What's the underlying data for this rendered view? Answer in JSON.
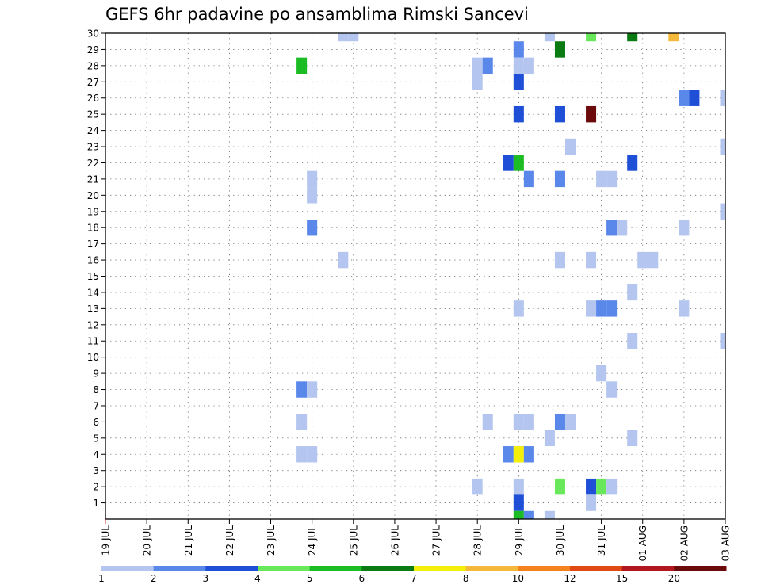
{
  "chart_data": {
    "type": "heatmap",
    "title": "GEFS 6hr padavine po ansamblima Rimski Sancevi",
    "xlabel": "",
    "ylabel": "",
    "x_ticks": [
      "19 JUL",
      "20 JUL",
      "21 JUL",
      "22 JUL",
      "23 JUL",
      "24 JUL",
      "25 JUL",
      "26 JUL",
      "27 JUL",
      "28 JUL",
      "29 JUL",
      "30 JUL",
      "31 JUL",
      "01 AUG",
      "02 AUG",
      "03 AUG"
    ],
    "y_ticks": [
      "1",
      "2",
      "3",
      "4",
      "5",
      "6",
      "7",
      "8",
      "9",
      "10",
      "11",
      "12",
      "13",
      "14",
      "15",
      "16",
      "17",
      "18",
      "19",
      "20",
      "21",
      "22",
      "23",
      "24",
      "25",
      "26",
      "27",
      "28",
      "29",
      "30"
    ],
    "x_range_days": [
      0,
      15
    ],
    "y_range": [
      0,
      30
    ],
    "x_step_hours": 6,
    "grid": true,
    "colorbar": {
      "labels": [
        "1",
        "2",
        "3",
        "4",
        "5",
        "6",
        "7",
        "8",
        "10",
        "12",
        "15",
        "20"
      ],
      "colors": [
        "#b4c6ef",
        "#5a87ea",
        "#1f4fd6",
        "#6ae85c",
        "#1cbd24",
        "#0a7a12",
        "#f3ee0a",
        "#f4b83a",
        "#f4821e",
        "#e24a14",
        "#b2161e",
        "#6b0a0a"
      ]
    },
    "cells": [
      {
        "x": 5.75,
        "y": 30,
        "level": 1
      },
      {
        "x": 6.0,
        "y": 30,
        "level": 1
      },
      {
        "x": 10.75,
        "y": 30,
        "level": 1
      },
      {
        "x": 11.75,
        "y": 30,
        "level": 4
      },
      {
        "x": 12.75,
        "y": 30,
        "level": 6
      },
      {
        "x": 13.75,
        "y": 30,
        "level": 8
      },
      {
        "x": 10.0,
        "y": 29,
        "level": 2
      },
      {
        "x": 11.0,
        "y": 29,
        "level": 6
      },
      {
        "x": 4.75,
        "y": 28,
        "level": 5
      },
      {
        "x": 9.0,
        "y": 28,
        "level": 1
      },
      {
        "x": 9.25,
        "y": 28,
        "level": 2
      },
      {
        "x": 10.0,
        "y": 28,
        "level": 1
      },
      {
        "x": 10.25,
        "y": 28,
        "level": 1
      },
      {
        "x": 9.0,
        "y": 27,
        "level": 1
      },
      {
        "x": 10.0,
        "y": 27,
        "level": 3
      },
      {
        "x": 14.0,
        "y": 26,
        "level": 2
      },
      {
        "x": 14.25,
        "y": 26,
        "level": 3
      },
      {
        "x": 15.0,
        "y": 26,
        "level": 1
      },
      {
        "x": 10.0,
        "y": 25,
        "level": 3
      },
      {
        "x": 11.0,
        "y": 25,
        "level": 3
      },
      {
        "x": 11.75,
        "y": 25,
        "level": 12
      },
      {
        "x": 11.25,
        "y": 23,
        "level": 1
      },
      {
        "x": 15.0,
        "y": 23,
        "level": 1
      },
      {
        "x": 9.75,
        "y": 22,
        "level": 3
      },
      {
        "x": 10.0,
        "y": 22,
        "level": 5
      },
      {
        "x": 12.75,
        "y": 22,
        "level": 3
      },
      {
        "x": 5.0,
        "y": 21,
        "level": 1
      },
      {
        "x": 10.25,
        "y": 21,
        "level": 2
      },
      {
        "x": 11.0,
        "y": 21,
        "level": 2
      },
      {
        "x": 12.0,
        "y": 21,
        "level": 1
      },
      {
        "x": 12.25,
        "y": 21,
        "level": 1
      },
      {
        "x": 5.0,
        "y": 20,
        "level": 1
      },
      {
        "x": 15.0,
        "y": 19,
        "level": 1
      },
      {
        "x": 5.0,
        "y": 18,
        "level": 2
      },
      {
        "x": 12.25,
        "y": 18,
        "level": 2
      },
      {
        "x": 12.5,
        "y": 18,
        "level": 1
      },
      {
        "x": 14.0,
        "y": 18,
        "level": 1
      },
      {
        "x": 5.75,
        "y": 16,
        "level": 1
      },
      {
        "x": 11.0,
        "y": 16,
        "level": 1
      },
      {
        "x": 11.75,
        "y": 16,
        "level": 1
      },
      {
        "x": 13.0,
        "y": 16,
        "level": 1
      },
      {
        "x": 13.25,
        "y": 16,
        "level": 1
      },
      {
        "x": 12.75,
        "y": 14,
        "level": 1
      },
      {
        "x": 10.0,
        "y": 13,
        "level": 1
      },
      {
        "x": 11.75,
        "y": 13,
        "level": 1
      },
      {
        "x": 12.0,
        "y": 13,
        "level": 2
      },
      {
        "x": 12.25,
        "y": 13,
        "level": 2
      },
      {
        "x": 14.0,
        "y": 13,
        "level": 1
      },
      {
        "x": 12.75,
        "y": 11,
        "level": 1
      },
      {
        "x": 15.0,
        "y": 11,
        "level": 1
      },
      {
        "x": 12.0,
        "y": 9,
        "level": 1
      },
      {
        "x": 4.75,
        "y": 8,
        "level": 2
      },
      {
        "x": 5.0,
        "y": 8,
        "level": 1
      },
      {
        "x": 12.25,
        "y": 8,
        "level": 1
      },
      {
        "x": 4.75,
        "y": 6,
        "level": 1
      },
      {
        "x": 9.25,
        "y": 6,
        "level": 1
      },
      {
        "x": 10.0,
        "y": 6,
        "level": 1
      },
      {
        "x": 10.25,
        "y": 6,
        "level": 1
      },
      {
        "x": 11.0,
        "y": 6,
        "level": 2
      },
      {
        "x": 11.25,
        "y": 6,
        "level": 1
      },
      {
        "x": 10.75,
        "y": 5,
        "level": 1
      },
      {
        "x": 12.75,
        "y": 5,
        "level": 1
      },
      {
        "x": 4.75,
        "y": 4,
        "level": 1
      },
      {
        "x": 5.0,
        "y": 4,
        "level": 1
      },
      {
        "x": 9.75,
        "y": 4,
        "level": 2
      },
      {
        "x": 10.0,
        "y": 4,
        "level": 7
      },
      {
        "x": 10.25,
        "y": 4,
        "level": 2
      },
      {
        "x": 9.0,
        "y": 2,
        "level": 1
      },
      {
        "x": 10.0,
        "y": 2,
        "level": 1
      },
      {
        "x": 11.0,
        "y": 2,
        "level": 4
      },
      {
        "x": 11.75,
        "y": 2,
        "level": 3
      },
      {
        "x": 12.0,
        "y": 2,
        "level": 4
      },
      {
        "x": 12.25,
        "y": 2,
        "level": 1
      },
      {
        "x": 10.0,
        "y": 1,
        "level": 3
      },
      {
        "x": 11.75,
        "y": 1,
        "level": 1
      },
      {
        "x": 10.0,
        "y": 0,
        "level": 5
      },
      {
        "x": 10.25,
        "y": 0,
        "level": 2
      },
      {
        "x": 10.75,
        "y": 0,
        "level": 1
      }
    ]
  }
}
